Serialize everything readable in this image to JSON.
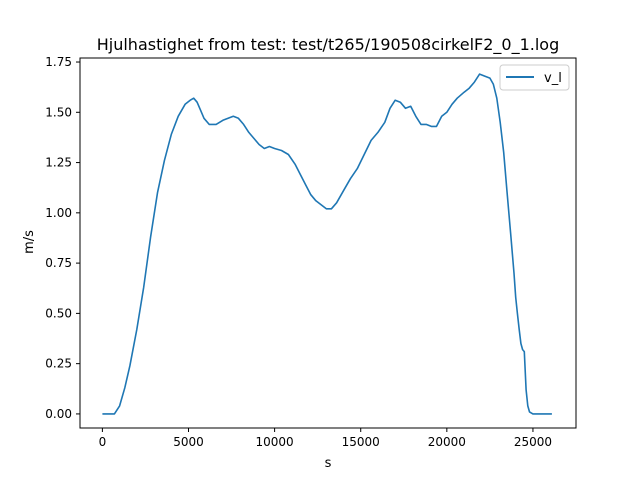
{
  "colors": {
    "series": "#1f77b4",
    "axes": "#000000",
    "background": "#ffffff",
    "legend_border": "#cccccc"
  },
  "chart_data": {
    "type": "line",
    "title": "Hjulhastighet from test: test/t265/190508cirkelF2_0_1.log",
    "xlabel": "s",
    "ylabel": "m/s",
    "xlim": [
      -1300,
      27500
    ],
    "ylim": [
      -0.07,
      1.77
    ],
    "grid": false,
    "legend_position": "top-right",
    "xticks": [
      {
        "value": 0,
        "label": "0"
      },
      {
        "value": 5000,
        "label": "5000"
      },
      {
        "value": 10000,
        "label": "10000"
      },
      {
        "value": 15000,
        "label": "15000"
      },
      {
        "value": 20000,
        "label": "20000"
      },
      {
        "value": 25000,
        "label": "25000"
      }
    ],
    "yticks": [
      {
        "value": 0,
        "label": "0.00"
      },
      {
        "value": 0.25,
        "label": "0.25"
      },
      {
        "value": 0.5,
        "label": "0.50"
      },
      {
        "value": 0.75,
        "label": "0.75"
      },
      {
        "value": 1.0,
        "label": "1.00"
      },
      {
        "value": 1.25,
        "label": "1.25"
      },
      {
        "value": 1.5,
        "label": "1.50"
      },
      {
        "value": 1.75,
        "label": "1.75"
      }
    ],
    "series": [
      {
        "name": "v_l",
        "x": [
          0,
          400,
          700,
          1000,
          1300,
          1600,
          2000,
          2400,
          2800,
          3200,
          3600,
          4000,
          4400,
          4800,
          5100,
          5300,
          5500,
          5700,
          5900,
          6200,
          6600,
          7000,
          7300,
          7600,
          7900,
          8200,
          8500,
          8800,
          9100,
          9400,
          9700,
          10000,
          10400,
          10800,
          11200,
          11500,
          11800,
          12100,
          12400,
          12700,
          13000,
          13300,
          13600,
          14000,
          14400,
          14800,
          15200,
          15600,
          16000,
          16400,
          16700,
          17000,
          17300,
          17600,
          17900,
          18200,
          18500,
          18800,
          19100,
          19400,
          19700,
          20000,
          20300,
          20600,
          21000,
          21300,
          21600,
          21900,
          22200,
          22500,
          22700,
          22900,
          23100,
          23300,
          23500,
          23700,
          23900,
          24000,
          24100,
          24200,
          24300,
          24400,
          24500,
          24600,
          24700,
          24800,
          25000,
          25500,
          26100
        ],
        "y": [
          0,
          0,
          0,
          0.04,
          0.13,
          0.24,
          0.42,
          0.63,
          0.88,
          1.1,
          1.26,
          1.39,
          1.48,
          1.54,
          1.56,
          1.57,
          1.55,
          1.51,
          1.47,
          1.44,
          1.44,
          1.46,
          1.47,
          1.48,
          1.47,
          1.44,
          1.4,
          1.37,
          1.34,
          1.32,
          1.33,
          1.32,
          1.31,
          1.29,
          1.24,
          1.19,
          1.14,
          1.09,
          1.06,
          1.04,
          1.02,
          1.02,
          1.05,
          1.11,
          1.17,
          1.22,
          1.29,
          1.36,
          1.4,
          1.45,
          1.52,
          1.56,
          1.55,
          1.52,
          1.53,
          1.48,
          1.44,
          1.44,
          1.43,
          1.43,
          1.48,
          1.5,
          1.54,
          1.57,
          1.6,
          1.62,
          1.65,
          1.69,
          1.68,
          1.67,
          1.64,
          1.57,
          1.45,
          1.3,
          1.1,
          0.9,
          0.7,
          0.58,
          0.5,
          0.42,
          0.35,
          0.32,
          0.31,
          0.12,
          0.04,
          0.01,
          0,
          0,
          0
        ]
      }
    ]
  }
}
